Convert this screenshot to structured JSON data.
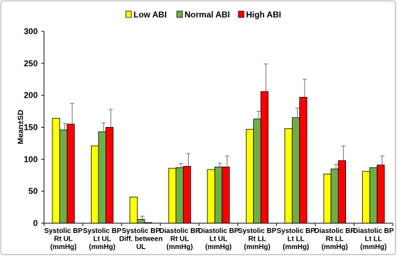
{
  "chart_data": {
    "type": "bar",
    "ylabel": "Mean±SD",
    "ylim": [
      0,
      300
    ],
    "yticks": [
      0,
      50,
      100,
      150,
      200,
      250,
      300
    ],
    "grid": false,
    "legend_position": "top-center",
    "categories": [
      [
        "Systolic BP",
        "Rt UL",
        "(mmHg)"
      ],
      [
        "Systolic BP",
        "Lt UL",
        "(mmHg)"
      ],
      [
        "Systolic BP",
        "Diff. between",
        "UL"
      ],
      [
        "Diastolic BP",
        "Rt UL",
        "(mmHg)"
      ],
      [
        "Diastolic BP",
        "Lt UL",
        "(mmHg)"
      ],
      [
        "Systolic BP",
        "Rt LL",
        "(mmHg)"
      ],
      [
        "Systolic BP",
        "Lt LL",
        "(mmHg)"
      ],
      [
        "Diastolic BP",
        "Rt LL",
        "(mmHg)"
      ],
      [
        "Diastolic BP",
        "Lt LL",
        "(mmHg)"
      ]
    ],
    "series": [
      {
        "name": "Low ABI",
        "color": "#ffff00",
        "values": [
          164,
          121,
          41,
          86,
          84,
          147,
          148,
          77,
          81
        ],
        "sd": [
          0,
          0,
          0,
          0,
          0,
          0,
          0,
          0,
          0
        ]
      },
      {
        "name": "Normal ABI",
        "color": "#70ad47",
        "values": [
          146,
          143,
          6,
          87,
          88,
          163,
          165,
          85,
          87
        ],
        "sd": [
          10,
          14,
          5,
          6,
          6,
          12,
          15,
          7,
          0
        ]
      },
      {
        "name": "High ABI",
        "color": "#ff0000",
        "values": [
          155,
          150,
          1,
          89,
          88,
          206,
          197,
          98,
          91
        ],
        "sd": [
          32,
          28,
          0,
          20,
          17,
          43,
          28,
          23,
          14
        ]
      }
    ]
  }
}
